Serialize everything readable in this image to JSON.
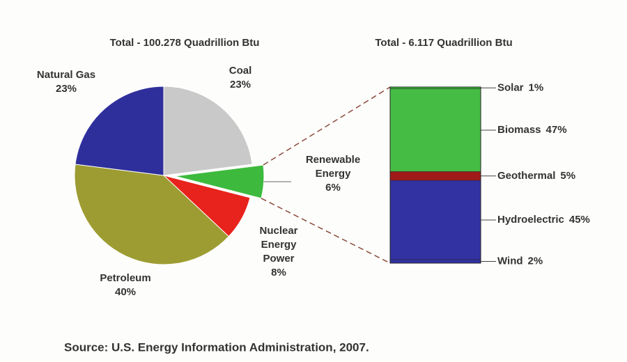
{
  "chart_data": [
    {
      "type": "pie",
      "title": "Total - 100.278 Quadrillion Btu",
      "categories": [
        "Coal",
        "Renewable Energy",
        "Nuclear Energy Power",
        "Petroleum",
        "Natural Gas"
      ],
      "values": [
        23,
        6,
        8,
        40,
        23
      ],
      "value_labels": [
        "23%",
        "6%",
        "8%",
        "40%",
        "23%"
      ],
      "colors": [
        "#c9c9c9",
        "#3dba3d",
        "#e8221c",
        "#9c9c32",
        "#2f2f9c"
      ],
      "exploded": "Renewable Energy"
    },
    {
      "type": "stacked_bar",
      "title": "Total - 6.117 Quadrillion Btu",
      "categories": [
        "Solar",
        "Biomass",
        "Geothermal",
        "Hydroelectric",
        "Wind"
      ],
      "values": [
        1,
        47,
        5,
        45,
        2
      ],
      "value_labels": [
        "1%",
        "47%",
        "5%",
        "45%",
        "2%"
      ],
      "colors": [
        "#3dba3d",
        "#45bd45",
        "#a01a1a",
        "#3232a2",
        "#3232a2"
      ]
    }
  ],
  "source": "Source:  U.S. Energy Information Administration, 2007."
}
